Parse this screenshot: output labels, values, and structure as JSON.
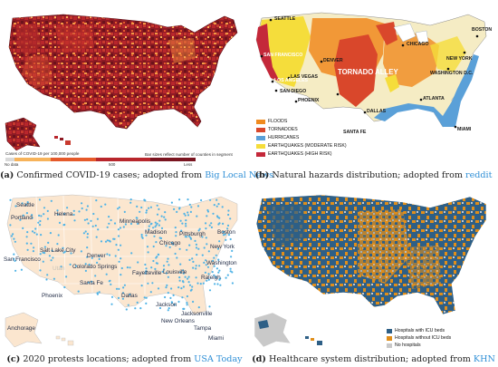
{
  "colors": {
    "covid_dark": "#7a1520",
    "covid_mid": "#b8262c",
    "covid_light": "#e55a2b",
    "covid_pale": "#f7b35a",
    "floods": "#f08a1e",
    "tornadoes": "#d9472b",
    "hurricanes": "#5aa0d8",
    "eq_moderate": "#f5dd3b",
    "eq_high": "#c4283a",
    "protest_land": "#fbe6cf",
    "protest_dot": "#4fb3e6",
    "hs_blue": "#2e5f86",
    "hs_orange": "#e08e1a",
    "hs_gray": "#c9c9c9",
    "caption_link": "#2f8fd6"
  },
  "panels": {
    "a": {
      "letter": "(a)",
      "caption": "Confirmed COVID-19 cases; adopted from",
      "source": "Big Local News",
      "legend_title": "Cases of COVID-19 per 100,000 people",
      "legend_note": "Bar sizes reflect number of counties in segment",
      "scale": [
        "No data",
        "1",
        "50",
        "150",
        "250",
        "500"
      ],
      "legend_tail": "Less"
    },
    "b": {
      "letter": "(b)",
      "caption": "Natural hazards distribution; adopted from",
      "source": "reddit",
      "region_label": "TORNADO ALLEY",
      "legend": [
        {
          "label": "FLOODS",
          "color_key": "floods"
        },
        {
          "label": "TORNADOES",
          "color_key": "tornadoes"
        },
        {
          "label": "HURRICANES",
          "color_key": "hurricanes"
        },
        {
          "label": "EARTHQUAKES (MODERATE RISK)",
          "color_key": "eq_moderate"
        },
        {
          "label": "EARTHQUAKES (HIGH RISK)",
          "color_key": "eq_high"
        }
      ],
      "cities": [
        "SEATTLE",
        "CHICAGO",
        "NEW YORK",
        "BOSTON",
        "SAN FRANCISCO",
        "LOS ANGELES",
        "SAN DIEGO",
        "LAS VEGAS",
        "DENVER",
        "PHOENIX",
        "DALLAS",
        "ATLANTA",
        "MIAMI",
        "WASHINGTON D.C.",
        "SANTA FE"
      ]
    },
    "c": {
      "letter": "(c)",
      "caption": "2020 protests locations; adopted from",
      "source": "USA Today",
      "cities": [
        "Seattle",
        "Portland",
        "Helena",
        "Minneapolis",
        "Madison",
        "Salt Lake City",
        "Chicago",
        "Pittsburgh",
        "New York",
        "Boston",
        "Washington",
        "San Francisco",
        "Denver",
        "Colorado Springs",
        "Fayetteville",
        "Santa Fe",
        "Phoenix",
        "Dallas",
        "Jackson",
        "Jacksonville",
        "New Orleans",
        "Tampa",
        "Miami",
        "Anchorage",
        "Utah",
        "Raleigh",
        "Louisville"
      ]
    },
    "d": {
      "letter": "(d)",
      "caption": "Healthcare system distribution; adopted from",
      "source": "KHN",
      "legend": [
        {
          "label": "Hospitals with ICU beds",
          "color_key": "hs_blue"
        },
        {
          "label": "Hospitals without ICU beds",
          "color_key": "hs_orange"
        },
        {
          "label": "No hospitals",
          "color_key": "hs_gray"
        }
      ]
    }
  }
}
